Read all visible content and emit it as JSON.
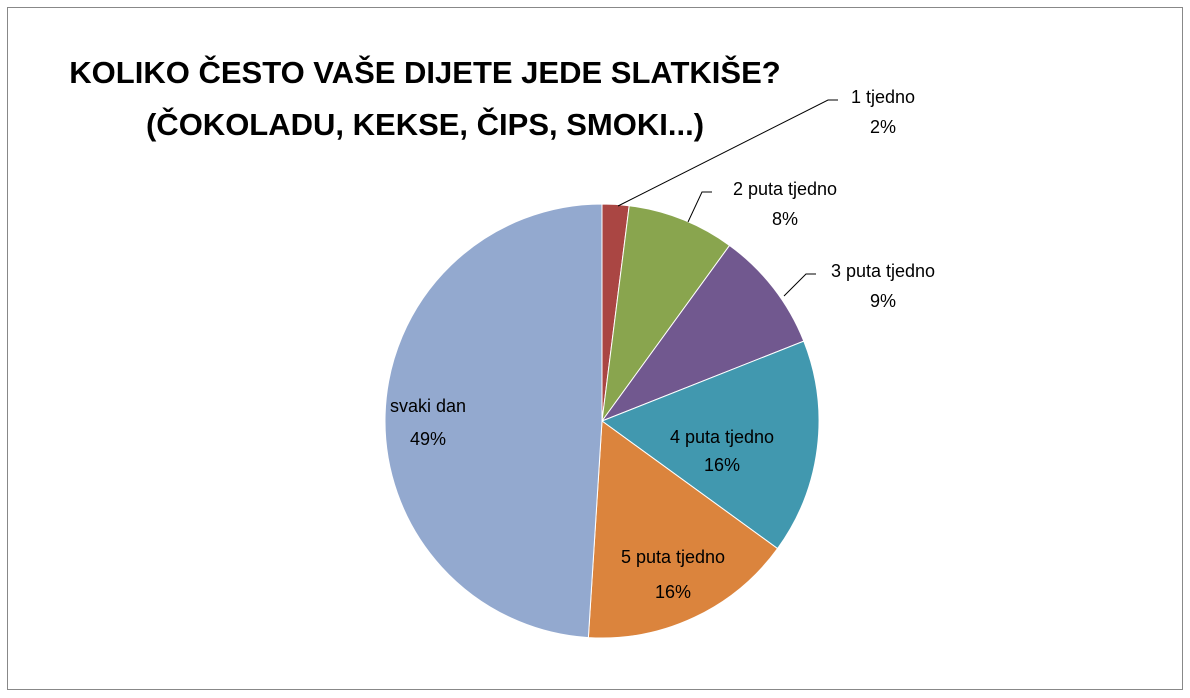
{
  "chart_data": {
    "type": "pie",
    "title": [
      "KOLIKO ČESTO VAŠE  DIJETE JEDE SLATKIŠE?",
      "(ČOKOLADU, KEKSE, ČIPS, SMOKI...)"
    ],
    "categories": [
      "1 tjedno",
      "2 puta tjedno",
      "3 puta tjedno",
      "4 puta tjedno",
      "5 puta tjedno",
      "svaki dan"
    ],
    "values": [
      2,
      8,
      9,
      16,
      16,
      49
    ],
    "value_labels": [
      "2%",
      "8%",
      "9%",
      "16%",
      "16%",
      "49%"
    ],
    "colors": [
      "#aa4643",
      "#89a54e",
      "#71588f",
      "#4198af",
      "#db843d",
      "#93a9cf"
    ]
  }
}
